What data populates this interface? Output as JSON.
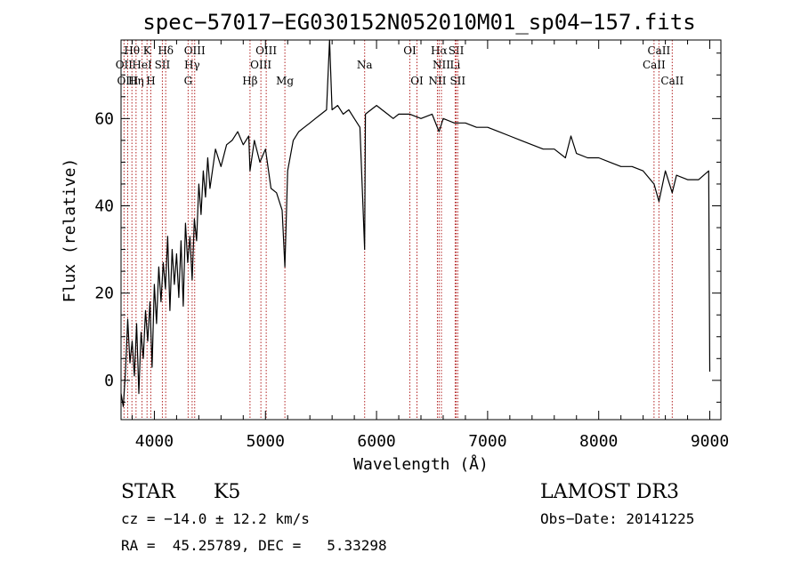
{
  "chart_data": {
    "type": "line",
    "title": "spec−57017−EG030152N052010M01_sp04−157.fits",
    "xlabel": "Wavelength (Å)",
    "ylabel": "Flux (relative)",
    "xlim": [
      3700,
      9100
    ],
    "ylim": [
      -9,
      78
    ],
    "xticks": [
      4000,
      5000,
      6000,
      7000,
      8000,
      9000
    ],
    "xtick_labels": [
      "4000",
      "5000",
      "6000",
      "7000",
      "8000",
      "9000"
    ],
    "yticks": [
      0,
      20,
      40,
      60
    ],
    "ytick_labels": [
      "0",
      "20",
      "40",
      "60"
    ],
    "grid": false,
    "series": [
      {
        "name": "spectrum",
        "color": "#000000",
        "x": [
          3700,
          3720,
          3740,
          3760,
          3780,
          3800,
          3820,
          3840,
          3860,
          3880,
          3900,
          3920,
          3940,
          3960,
          3980,
          4000,
          4020,
          4040,
          4060,
          4080,
          4100,
          4120,
          4140,
          4160,
          4180,
          4200,
          4220,
          4240,
          4260,
          4280,
          4300,
          4320,
          4340,
          4360,
          4380,
          4400,
          4420,
          4440,
          4460,
          4480,
          4500,
          4550,
          4600,
          4650,
          4700,
          4750,
          4800,
          4850,
          4861,
          4900,
          4950,
          5000,
          5050,
          5100,
          5150,
          5175,
          5200,
          5250,
          5300,
          5350,
          5400,
          5450,
          5500,
          5550,
          5577,
          5600,
          5650,
          5700,
          5750,
          5800,
          5850,
          5893,
          5900,
          5950,
          6000,
          6050,
          6100,
          6150,
          6200,
          6300,
          6400,
          6500,
          6563,
          6600,
          6700,
          6800,
          6900,
          7000,
          7100,
          7200,
          7300,
          7400,
          7500,
          7600,
          7700,
          7750,
          7800,
          7900,
          8000,
          8100,
          8200,
          8300,
          8400,
          8498,
          8542,
          8600,
          8662,
          8700,
          8800,
          8900,
          8990,
          9000
        ],
        "values": [
          -3,
          -6,
          2,
          14,
          4,
          9,
          1,
          13,
          -3,
          11,
          5,
          16,
          9,
          18,
          3,
          22,
          13,
          26,
          18,
          27,
          21,
          33,
          16,
          30,
          22,
          29,
          19,
          32,
          17,
          36,
          27,
          33,
          23,
          37,
          32,
          45,
          38,
          48,
          42,
          51,
          44,
          53,
          49,
          54,
          55,
          57,
          54,
          56,
          48,
          55,
          50,
          53,
          44,
          43,
          39,
          26,
          48,
          55,
          57,
          58,
          59,
          60,
          61,
          62,
          78,
          62,
          63,
          61,
          62,
          60,
          58,
          30,
          61,
          62,
          63,
          62,
          61,
          60,
          61,
          61,
          60,
          61,
          57,
          60,
          59,
          59,
          58,
          58,
          57,
          56,
          55,
          54,
          53,
          53,
          51,
          56,
          52,
          51,
          51,
          50,
          49,
          49,
          48,
          45,
          41,
          48,
          43,
          47,
          46,
          46,
          48,
          2
        ],
        "approx_note": "values read from the plotted curve; noisy spectrum summarized by sampled points"
      }
    ],
    "lines": [
      {
        "label": "Hθ",
        "wavelength": 3798,
        "row": 1
      },
      {
        "label": "OII",
        "wavelength": 3727,
        "row": 2
      },
      {
        "label": "OIII",
        "wavelength": 3760,
        "row": 3
      },
      {
        "label": "K",
        "wavelength": 3934,
        "row": 1
      },
      {
        "label": "HeI",
        "wavelength": 3889,
        "row": 2
      },
      {
        "label": "Hη",
        "wavelength": 3835,
        "row": 3
      },
      {
        "label": "SII",
        "wavelength": 4072,
        "row": 2
      },
      {
        "label": "H",
        "wavelength": 3968,
        "row": 3
      },
      {
        "label": "Hδ",
        "wavelength": 4102,
        "row": 1
      },
      {
        "label": "OIII",
        "wavelength": 4363,
        "row": 1
      },
      {
        "label": "Hγ",
        "wavelength": 4340,
        "row": 2
      },
      {
        "label": "G",
        "wavelength": 4304,
        "row": 3
      },
      {
        "label": "Hβ",
        "wavelength": 4861,
        "row": 3
      },
      {
        "label": "OIII",
        "wavelength": 5007,
        "row": 1
      },
      {
        "label": "OIII",
        "wavelength": 4959,
        "row": 2
      },
      {
        "label": "Mg",
        "wavelength": 5175,
        "row": 3
      },
      {
        "label": "Na",
        "wavelength": 5893,
        "row": 2
      },
      {
        "label": "OI",
        "wavelength": 6300,
        "row": 1
      },
      {
        "label": "OI",
        "wavelength": 6364,
        "row": 3
      },
      {
        "label": "Hα",
        "wavelength": 6563,
        "row": 1
      },
      {
        "label": "SII",
        "wavelength": 6717,
        "row": 1
      },
      {
        "label": "NII",
        "wavelength": 6584,
        "row": 2
      },
      {
        "label": "Li",
        "wavelength": 6708,
        "row": 2
      },
      {
        "label": "NII",
        "wavelength": 6548,
        "row": 3
      },
      {
        "label": "SII",
        "wavelength": 6731,
        "row": 3
      },
      {
        "label": "CaII",
        "wavelength": 8542,
        "row": 1
      },
      {
        "label": "CaII",
        "wavelength": 8498,
        "row": 2
      },
      {
        "label": "CaII",
        "wavelength": 8662,
        "row": 3
      }
    ],
    "line_color": "#b22222"
  },
  "info": {
    "class_label": "STAR",
    "subclass": "K5",
    "survey": "LAMOST DR3",
    "cz_text": "cz = −14.0 ± 12.2 km/s",
    "obs_date_text": "Obs−Date: 20141225",
    "radec_text": "RA =  45.25789, DEC =   5.33298"
  }
}
